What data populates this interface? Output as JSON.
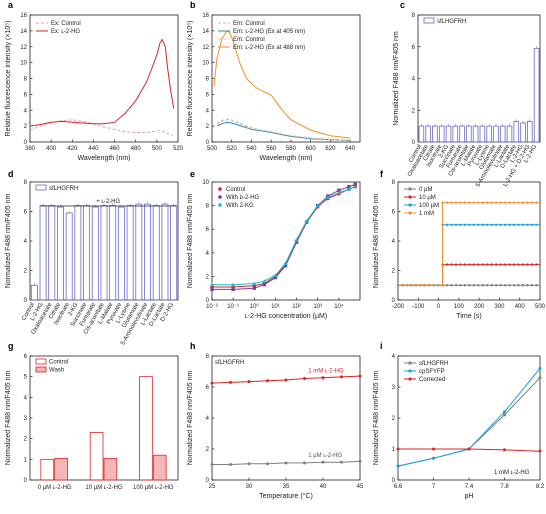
{
  "chart_data": [
    {
      "panel": "a",
      "type": "line",
      "xlabel": "Wavelength (nm)",
      "ylabel": "Relative fluorescence intensity (×10⁵)",
      "xlim": [
        380,
        520
      ],
      "ylim": [
        0,
        16
      ],
      "xticks": [
        380,
        400,
        420,
        440,
        460,
        480,
        500,
        520
      ],
      "yticks": [
        0,
        2,
        4,
        6,
        8,
        10,
        12,
        14,
        16
      ],
      "series": [
        {
          "name": "Ex: Control",
          "color": "#e8a0a0",
          "dash": true,
          "x": [
            380,
            390,
            400,
            410,
            420,
            430,
            440,
            450,
            460,
            470,
            480,
            490,
            500,
            505,
            510,
            515
          ],
          "y": [
            1.5,
            2.0,
            2.4,
            2.7,
            2.8,
            2.6,
            2.3,
            1.9,
            1.6,
            1.3,
            1.2,
            1.2,
            1.4,
            1.4,
            1.1,
            0.8
          ]
        },
        {
          "name": "Ex: ʟ-2-HG",
          "color": "#d62728",
          "dash": false,
          "x": [
            380,
            390,
            400,
            410,
            420,
            430,
            440,
            450,
            460,
            470,
            480,
            490,
            495,
            500,
            503,
            505,
            508,
            510,
            513,
            516
          ],
          "y": [
            2.0,
            2.2,
            2.5,
            2.6,
            2.5,
            2.4,
            2.3,
            2.3,
            2.5,
            3.6,
            5.2,
            7.5,
            9.2,
            11.0,
            12.5,
            12.9,
            12.0,
            9.5,
            6.5,
            4.2
          ]
        }
      ]
    },
    {
      "panel": "b",
      "type": "line",
      "xlabel": "Wavelength (nm)",
      "ylabel": "Relative fluorescence intensity (×10⁵)",
      "xlim": [
        500,
        650
      ],
      "ylim": [
        0,
        16
      ],
      "xticks": [
        500,
        520,
        540,
        560,
        580,
        600,
        620,
        640
      ],
      "yticks": [
        0,
        2,
        4,
        6,
        8,
        10,
        12,
        14,
        16
      ],
      "series": [
        {
          "name": "Em: Control",
          "color": "#9ecae1",
          "dash": true,
          "x": [
            505,
            510,
            515,
            520,
            530,
            540,
            550,
            560,
            580,
            600,
            620,
            640
          ],
          "y": [
            2.4,
            2.7,
            2.9,
            2.8,
            2.3,
            1.8,
            1.5,
            1.3,
            0.8,
            0.5,
            0.3,
            0.2
          ]
        },
        {
          "name": "Em: ʟ-2-HG (Ex at 405 nm)",
          "color": "#2b8cbe",
          "dash": false,
          "x": [
            505,
            510,
            515,
            520,
            530,
            540,
            550,
            560,
            580,
            600,
            620,
            640
          ],
          "y": [
            2.0,
            2.3,
            2.5,
            2.4,
            2.0,
            1.6,
            1.4,
            1.2,
            0.7,
            0.4,
            0.3,
            0.2
          ]
        },
        {
          "name": "Em: Control",
          "color": "#fdbf8f",
          "dash": true,
          "x": [
            505,
            510,
            515,
            520,
            530,
            540,
            550,
            560,
            580,
            600,
            620,
            640
          ],
          "y": [
            2.2,
            2.6,
            2.8,
            2.7,
            2.2,
            1.7,
            1.5,
            1.3,
            0.8,
            0.5,
            0.3,
            0.2
          ]
        },
        {
          "name": "Em: ʟ-2-HG (Ex at 488 nm)",
          "color": "#f28e2b",
          "dash": false,
          "x": [
            502,
            505,
            510,
            515,
            518,
            522,
            528,
            535,
            545,
            555,
            560,
            570,
            580,
            600,
            620,
            640
          ],
          "y": [
            7.0,
            10.5,
            13.0,
            14.0,
            13.8,
            12.5,
            10.0,
            8.0,
            6.8,
            6.2,
            5.9,
            4.2,
            2.8,
            1.5,
            0.8,
            0.5
          ]
        }
      ]
    },
    {
      "panel": "c",
      "type": "bar",
      "legend": "sfLHGFRH",
      "ylabel": "Normalized F488 nm/F405 nm",
      "ylim": [
        0,
        8
      ],
      "yticks": [
        0,
        2,
        4,
        6,
        8
      ],
      "categories": [
        "Control",
        "Oxaloacetate",
        "Citrate",
        "Isocitrate",
        "2-KG",
        "Succinate",
        "Fumarate",
        "Cis-aconitate",
        "L-Malate",
        "Pyruvate",
        "L-Lysine",
        "Glutamate",
        "5-Aminolevulinate",
        "L-Lactate",
        "D-Lactate",
        "L-2-HG",
        "L-2-HG + D-2-HG",
        "L-2-HG"
      ],
      "values": [
        1.0,
        1.0,
        1.0,
        1.0,
        1.0,
        1.0,
        1.0,
        1.0,
        1.0,
        1.0,
        1.0,
        1.0,
        1.0,
        1.0,
        1.3,
        1.2,
        1.3,
        5.9
      ]
    },
    {
      "panel": "d",
      "type": "bar",
      "legend": "sfLHGFRH",
      "annotation": "+ ʟ-2-HG",
      "ylabel": "Normalized F488 nm/F405 nm",
      "ylim": [
        0,
        8
      ],
      "yticks": [
        0,
        2,
        4,
        6,
        8
      ],
      "categories": [
        "Control",
        "L-2-HG",
        "Oxaloacetate",
        "Citrate",
        "Isocitrate",
        "2-KG",
        "Succinate",
        "Fumarate",
        "Cis-aconitate",
        "L-Malate",
        "Pyruvate",
        "L-Lysine",
        "Glutamate",
        "5-Aminolevulinate",
        "L-Lactate",
        "D-Lactate",
        "D-2-HG"
      ],
      "values": [
        1.0,
        6.4,
        6.4,
        6.3,
        5.9,
        6.4,
        6.4,
        6.3,
        6.4,
        6.4,
        6.3,
        6.4,
        6.5,
        6.5,
        6.4,
        6.5,
        6.4
      ]
    },
    {
      "panel": "e",
      "type": "scatter",
      "xlabel": "ʟ-2-HG concentration (µM)",
      "ylabel": "Normalized F488 nm/F405 nm",
      "xscale": "log",
      "xlim": [
        0.01,
        100000
      ],
      "ylim": [
        0,
        10
      ],
      "xticklabels": [
        "10⁻²",
        "10⁻¹",
        "10⁰",
        "10¹",
        "10²",
        "10³",
        "10⁴"
      ],
      "yticks": [
        0,
        2,
        4,
        6,
        8,
        10
      ],
      "series": [
        {
          "name": "Control",
          "color": "#d62728",
          "marker": "circle",
          "x": [
            0.01,
            0.1,
            1,
            3,
            10,
            30,
            100,
            300,
            1000,
            3000,
            10000,
            30000,
            60000
          ],
          "y": [
            1.1,
            1.1,
            1.2,
            1.4,
            2.0,
            3.0,
            5.0,
            6.6,
            7.9,
            8.6,
            9.0,
            9.4,
            9.6
          ]
        },
        {
          "name": "With ᴅ-2-HG",
          "color": "#7b3f9e",
          "marker": "square",
          "x": [
            0.01,
            0.1,
            1,
            3,
            10,
            30,
            100,
            300,
            1000,
            3000,
            10000,
            30000,
            60000
          ],
          "y": [
            0.9,
            0.9,
            1.0,
            1.3,
            1.9,
            2.9,
            4.9,
            6.6,
            8.0,
            8.8,
            9.3,
            9.6,
            9.8
          ]
        },
        {
          "name": "With 2-KG",
          "color": "#17becf",
          "marker": "triangle",
          "x": [
            0.01,
            0.1,
            1,
            3,
            10,
            30,
            100,
            300,
            1000,
            3000,
            10000,
            30000,
            60000
          ],
          "y": [
            1.3,
            1.3,
            1.4,
            1.6,
            2.1,
            3.1,
            5.1,
            6.7,
            8.0,
            8.7,
            9.1,
            9.4,
            9.6
          ]
        }
      ]
    },
    {
      "panel": "f",
      "type": "line",
      "xlabel": "Time (s)",
      "ylabel": "Normalized F488 nm/F405 nm",
      "xlim": [
        -200,
        500
      ],
      "ylim": [
        0,
        8
      ],
      "xticks": [
        -200,
        -100,
        0,
        100,
        200,
        300,
        400,
        500
      ],
      "yticks": [
        0,
        2,
        4,
        6,
        8
      ],
      "series": [
        {
          "name": "0 µM",
          "color": "#7f7f7f",
          "x": [
            -200,
            500
          ],
          "y": [
            1.0,
            1.0
          ],
          "step_at": null
        },
        {
          "name": "10 µM",
          "color": "#d62728",
          "x": [
            -200,
            20,
            500
          ],
          "y": [
            1.0,
            1.0,
            2.4
          ],
          "step_at": 20
        },
        {
          "name": "100 µM",
          "color": "#17a2d8",
          "x": [
            -200,
            20,
            500
          ],
          "y": [
            1.0,
            1.0,
            5.1
          ],
          "step_at": 20
        },
        {
          "name": "1 mM",
          "color": "#f28e2b",
          "x": [
            -200,
            20,
            500
          ],
          "y": [
            1.0,
            1.0,
            6.6
          ],
          "step_at": 20
        }
      ]
    },
    {
      "panel": "g",
      "type": "bar",
      "ylabel": "Normalized F488 nm/F405 nm",
      "ylim": [
        0,
        6
      ],
      "yticks": [
        0,
        1,
        2,
        3,
        4,
        5,
        6
      ],
      "categories": [
        "0 µM ʟ-2-HG",
        "10 µM ʟ-2-HG",
        "100 µM ʟ-2-HG"
      ],
      "series": [
        {
          "name": "Control",
          "color": "#d62728",
          "fill": "none",
          "values": [
            1.0,
            2.3,
            5.0
          ]
        },
        {
          "name": "Wash",
          "color": "#d62728",
          "fill": "#f4b6b6",
          "values": [
            1.05,
            1.05,
            1.2
          ]
        }
      ]
    },
    {
      "panel": "h",
      "type": "line",
      "title": "sfLHGFRH",
      "xlabel": "Temperature (°C)",
      "ylabel": "Normalized F488 nm/F405 nm",
      "xlim": [
        25,
        45
      ],
      "ylim": [
        0,
        8
      ],
      "xticks": [
        25,
        30,
        35,
        40,
        45
      ],
      "yticks": [
        0,
        2,
        4,
        6,
        8
      ],
      "series": [
        {
          "name": "1 mM ʟ-2-HG",
          "color": "#d62728",
          "x": [
            25,
            27.5,
            30,
            32.5,
            35,
            37.5,
            40,
            42.5,
            45
          ],
          "y": [
            6.25,
            6.3,
            6.35,
            6.4,
            6.45,
            6.55,
            6.6,
            6.65,
            6.7
          ]
        },
        {
          "name": "1 µM ʟ-2-HG",
          "color": "#7f7f7f",
          "x": [
            25,
            27.5,
            30,
            32.5,
            35,
            37.5,
            40,
            42.5,
            45
          ],
          "y": [
            1.0,
            1.0,
            1.05,
            1.05,
            1.1,
            1.1,
            1.15,
            1.15,
            1.2
          ]
        }
      ]
    },
    {
      "panel": "i",
      "type": "line",
      "annotation": "1 mM ʟ-2-HG",
      "xlabel": "pH",
      "ylabel": "Normalized F488 nm/F405 nm",
      "xlim": [
        6.6,
        8.2
      ],
      "ylim": [
        0,
        4
      ],
      "xticks": [
        6.6,
        7.0,
        7.4,
        7.8,
        8.2
      ],
      "yticks": [
        0,
        1,
        2,
        3,
        4
      ],
      "series": [
        {
          "name": "sfLHGFRH",
          "color": "#7f7f7f",
          "x": [
            6.6,
            7.0,
            7.4,
            7.8,
            8.2
          ],
          "y": [
            0.45,
            0.7,
            1.0,
            2.1,
            3.3
          ]
        },
        {
          "name": "cpSFYFP",
          "color": "#17a2d8",
          "x": [
            6.6,
            7.0,
            7.4,
            7.8,
            8.2
          ],
          "y": [
            0.45,
            0.7,
            1.0,
            2.2,
            3.6
          ]
        },
        {
          "name": "Corrected",
          "color": "#d62728",
          "x": [
            6.6,
            7.0,
            7.4,
            7.8,
            8.2
          ],
          "y": [
            1.0,
            1.0,
            1.0,
            0.97,
            0.93
          ]
        }
      ]
    }
  ]
}
